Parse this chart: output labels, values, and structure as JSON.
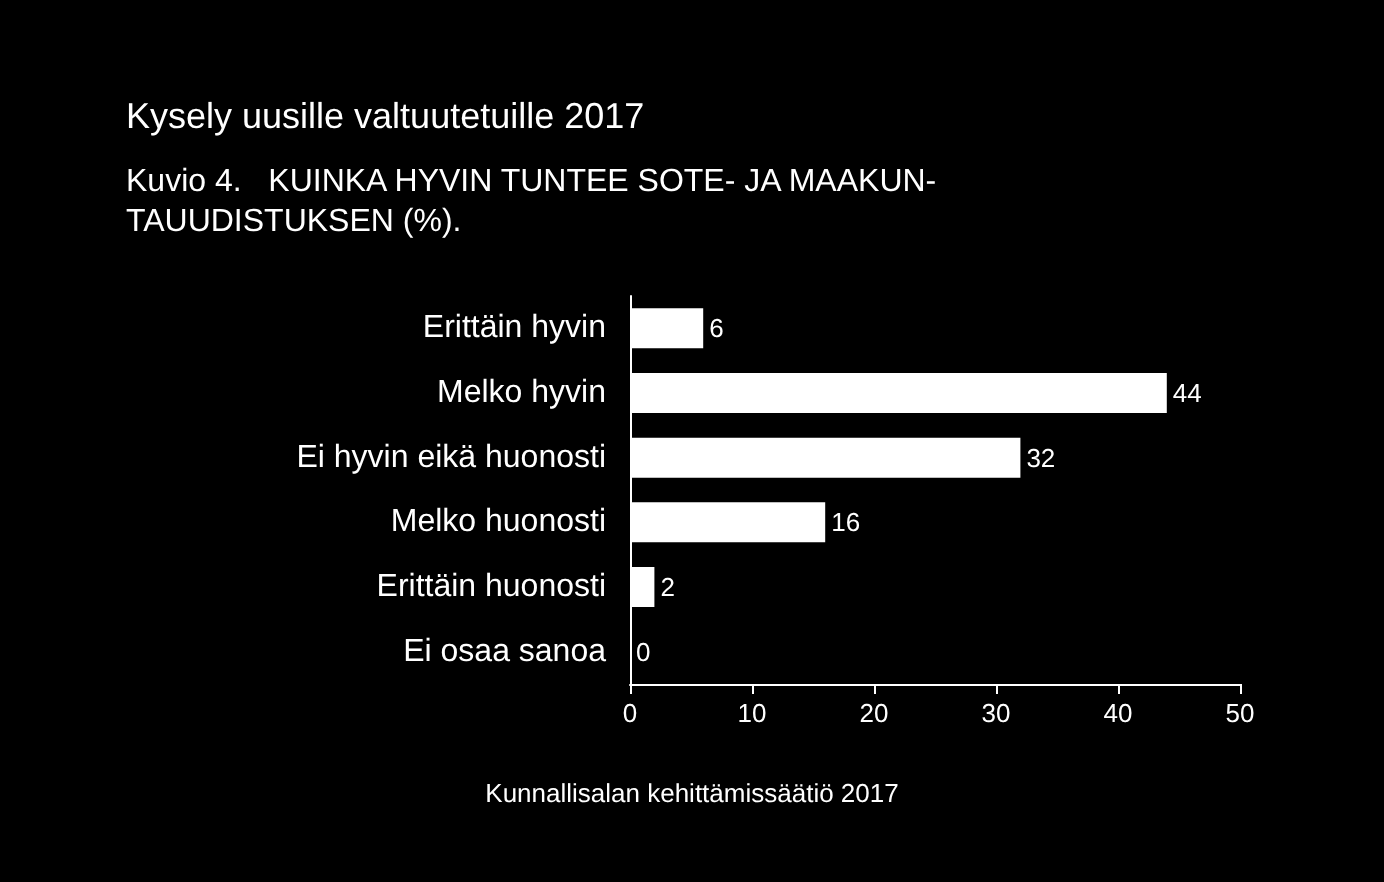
{
  "chart_data": {
    "type": "bar",
    "orientation": "horizontal",
    "title": "Kysely uusille valtuutetuille 2017",
    "subtitle": "Kuvio 4.   KUINKA HYVIN TUNTEE SOTE- JA MAAKUN-\nTAUUDISTUKSEN (%).",
    "categories": [
      "Erittäin hyvin",
      "Melko hyvin",
      "Ei hyvin eikä huonosti",
      "Melko huonosti",
      "Erittäin huonosti",
      "Ei osaa sanoa"
    ],
    "values": [
      6,
      44,
      32,
      16,
      2,
      0
    ],
    "color": "#ffffff",
    "xlim": [
      0,
      50
    ],
    "xticks": [
      0,
      10,
      20,
      30,
      40,
      50
    ],
    "grid": false,
    "data_labels": true,
    "annotations": [
      "Kunnallisalan kehittämissäätiö 2017"
    ]
  }
}
